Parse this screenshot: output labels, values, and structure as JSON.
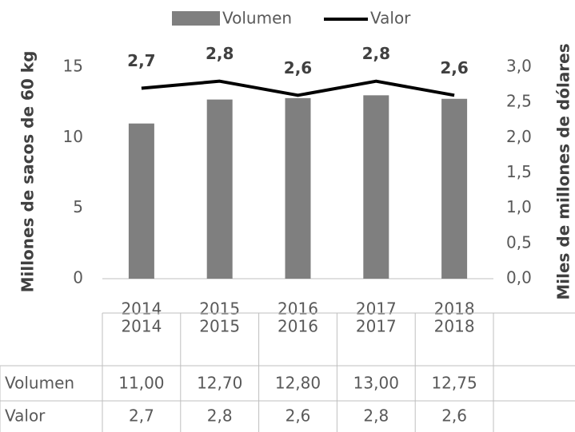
{
  "chart_data": {
    "type": "bar+line",
    "categories": [
      "2014",
      "2015",
      "2016",
      "2017",
      "2018"
    ],
    "series": [
      {
        "name": "Volumen",
        "type": "bar",
        "color": "#7f7f7f",
        "values": [
          11.0,
          12.7,
          12.8,
          13.0,
          12.75
        ],
        "value_labels": [
          "11,00",
          "12,70",
          "12,80",
          "13,00",
          "12,75"
        ]
      },
      {
        "name": "Valor",
        "type": "line",
        "axis": "y2",
        "color": "#000000",
        "values": [
          2.7,
          2.8,
          2.6,
          2.8,
          2.6
        ],
        "value_labels": [
          "2,7",
          "2,8",
          "2,6",
          "2,8",
          "2,6"
        ]
      }
    ],
    "y_label": "Millones de sacos de 60 kg",
    "y2_label": "Miles de millones de dólares",
    "ylim": [
      0,
      15
    ],
    "yticks": [
      0,
      5,
      10,
      15
    ],
    "y2lim": [
      0,
      3
    ],
    "y2ticks": [
      {
        "value": 0,
        "label": "0,0"
      },
      {
        "value": 0.5,
        "label": "0,5"
      },
      {
        "value": 1,
        "label": "1,0"
      },
      {
        "value": 1.5,
        "label": "1,5"
      },
      {
        "value": 2,
        "label": "2,0"
      },
      {
        "value": 2.5,
        "label": "2,5"
      },
      {
        "value": 3,
        "label": "3,0"
      }
    ],
    "legend": "top",
    "data_table": true
  }
}
